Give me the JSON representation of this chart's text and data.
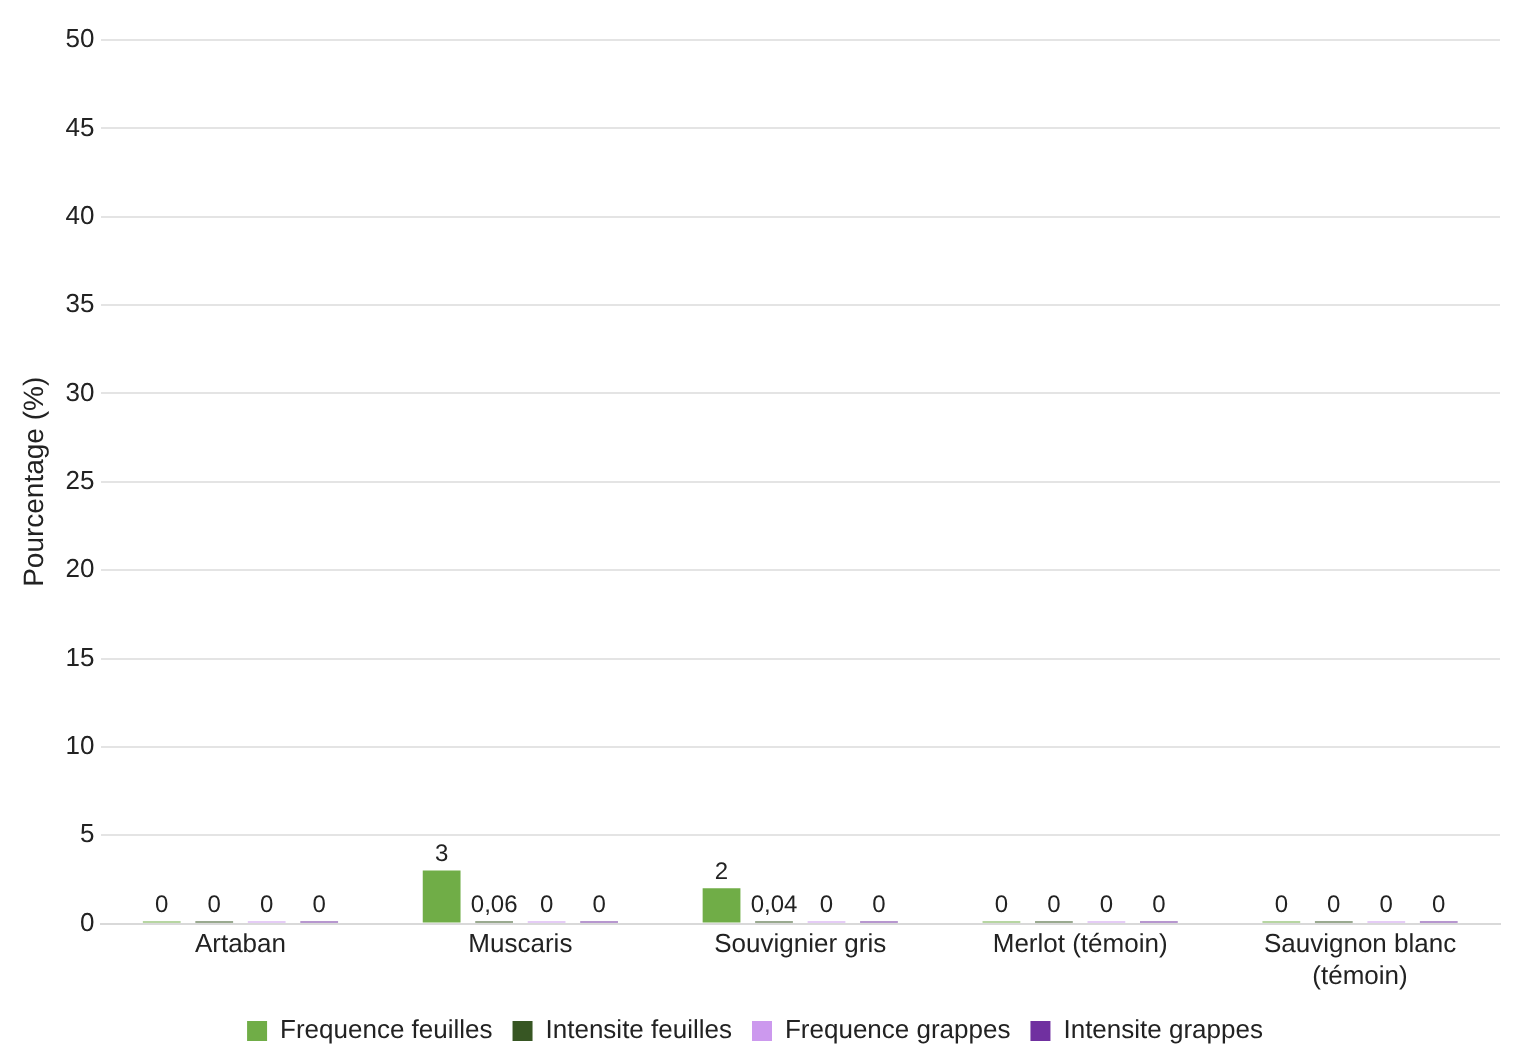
{
  "chart_data": {
    "type": "bar",
    "ylabel": "Pourcentage (%)",
    "categories": [
      "Artaban",
      "Muscaris",
      "Souvignier gris",
      "Merlot (témoin)",
      "Sauvignon blanc (témoin)"
    ],
    "series": [
      {
        "name": "Frequence feuilles",
        "color": "#70ad47",
        "values": [
          0,
          3,
          2,
          0,
          0
        ],
        "value_labels": [
          "0",
          "3",
          "2",
          "0",
          "0"
        ]
      },
      {
        "name": "Intensite feuilles",
        "color": "#375623",
        "values": [
          0,
          0.06,
          0.04,
          0,
          0
        ],
        "value_labels": [
          "0",
          "0,06",
          "0,04",
          "0",
          "0"
        ]
      },
      {
        "name": "Frequence grappes",
        "color": "#cc99ee",
        "values": [
          0,
          0,
          0,
          0,
          0
        ],
        "value_labels": [
          "0",
          "0",
          "0",
          "0",
          "0"
        ]
      },
      {
        "name": "Intensite grappes",
        "color": "#7030a0",
        "values": [
          0,
          0,
          0,
          0,
          0
        ],
        "value_labels": [
          "0",
          "0",
          "0",
          "0",
          "0"
        ]
      }
    ],
    "ylim": [
      0,
      50
    ],
    "yticks": [
      0,
      5,
      10,
      15,
      20,
      25,
      30,
      35,
      40,
      45,
      50
    ],
    "grid": "y",
    "legend": "bottom"
  }
}
